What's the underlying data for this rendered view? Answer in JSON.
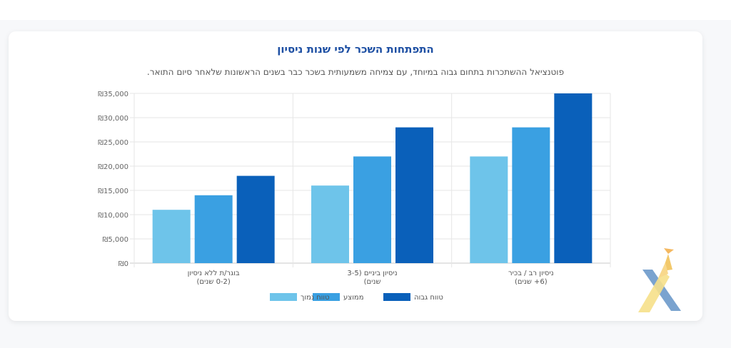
{
  "page": {
    "title": "התפתחות השכר לפי שנות ניסיון",
    "subtitle": "פוטנציאל ההשתכרות בתחום גבוה במיוחד, עם צמיחה משמעותית בשכר כבר בשנים הראשונות שלאחר סיום התואר."
  },
  "chart_data": {
    "type": "bar",
    "categories": [
      [
        "בוגר/ת ללא ניסיון",
        "(0-2 שנים)"
      ],
      [
        "ניסיון ביניים (3-5",
        "שנים)"
      ],
      [
        "ניסיון רב / בכיר",
        "(6+ שנים)"
      ]
    ],
    "series": [
      {
        "name": "טווח נמוך",
        "values": [
          11000,
          16000,
          22000
        ],
        "color": "#6ec4ea"
      },
      {
        "name": "ממוצע",
        "values": [
          14000,
          22000,
          28000
        ],
        "color": "#3aa0e2"
      },
      {
        "name": "טווח גבוה",
        "values": [
          18000,
          28000,
          35000
        ],
        "color": "#0a60ba"
      }
    ],
    "ylim": [
      0,
      35000
    ],
    "yticks": [
      "₪0",
      "₪5,000",
      "₪10,000",
      "₪15,000",
      "₪20,000",
      "₪25,000",
      "₪30,000",
      "₪35,000"
    ],
    "grid": true,
    "legend_position": "bottom"
  }
}
